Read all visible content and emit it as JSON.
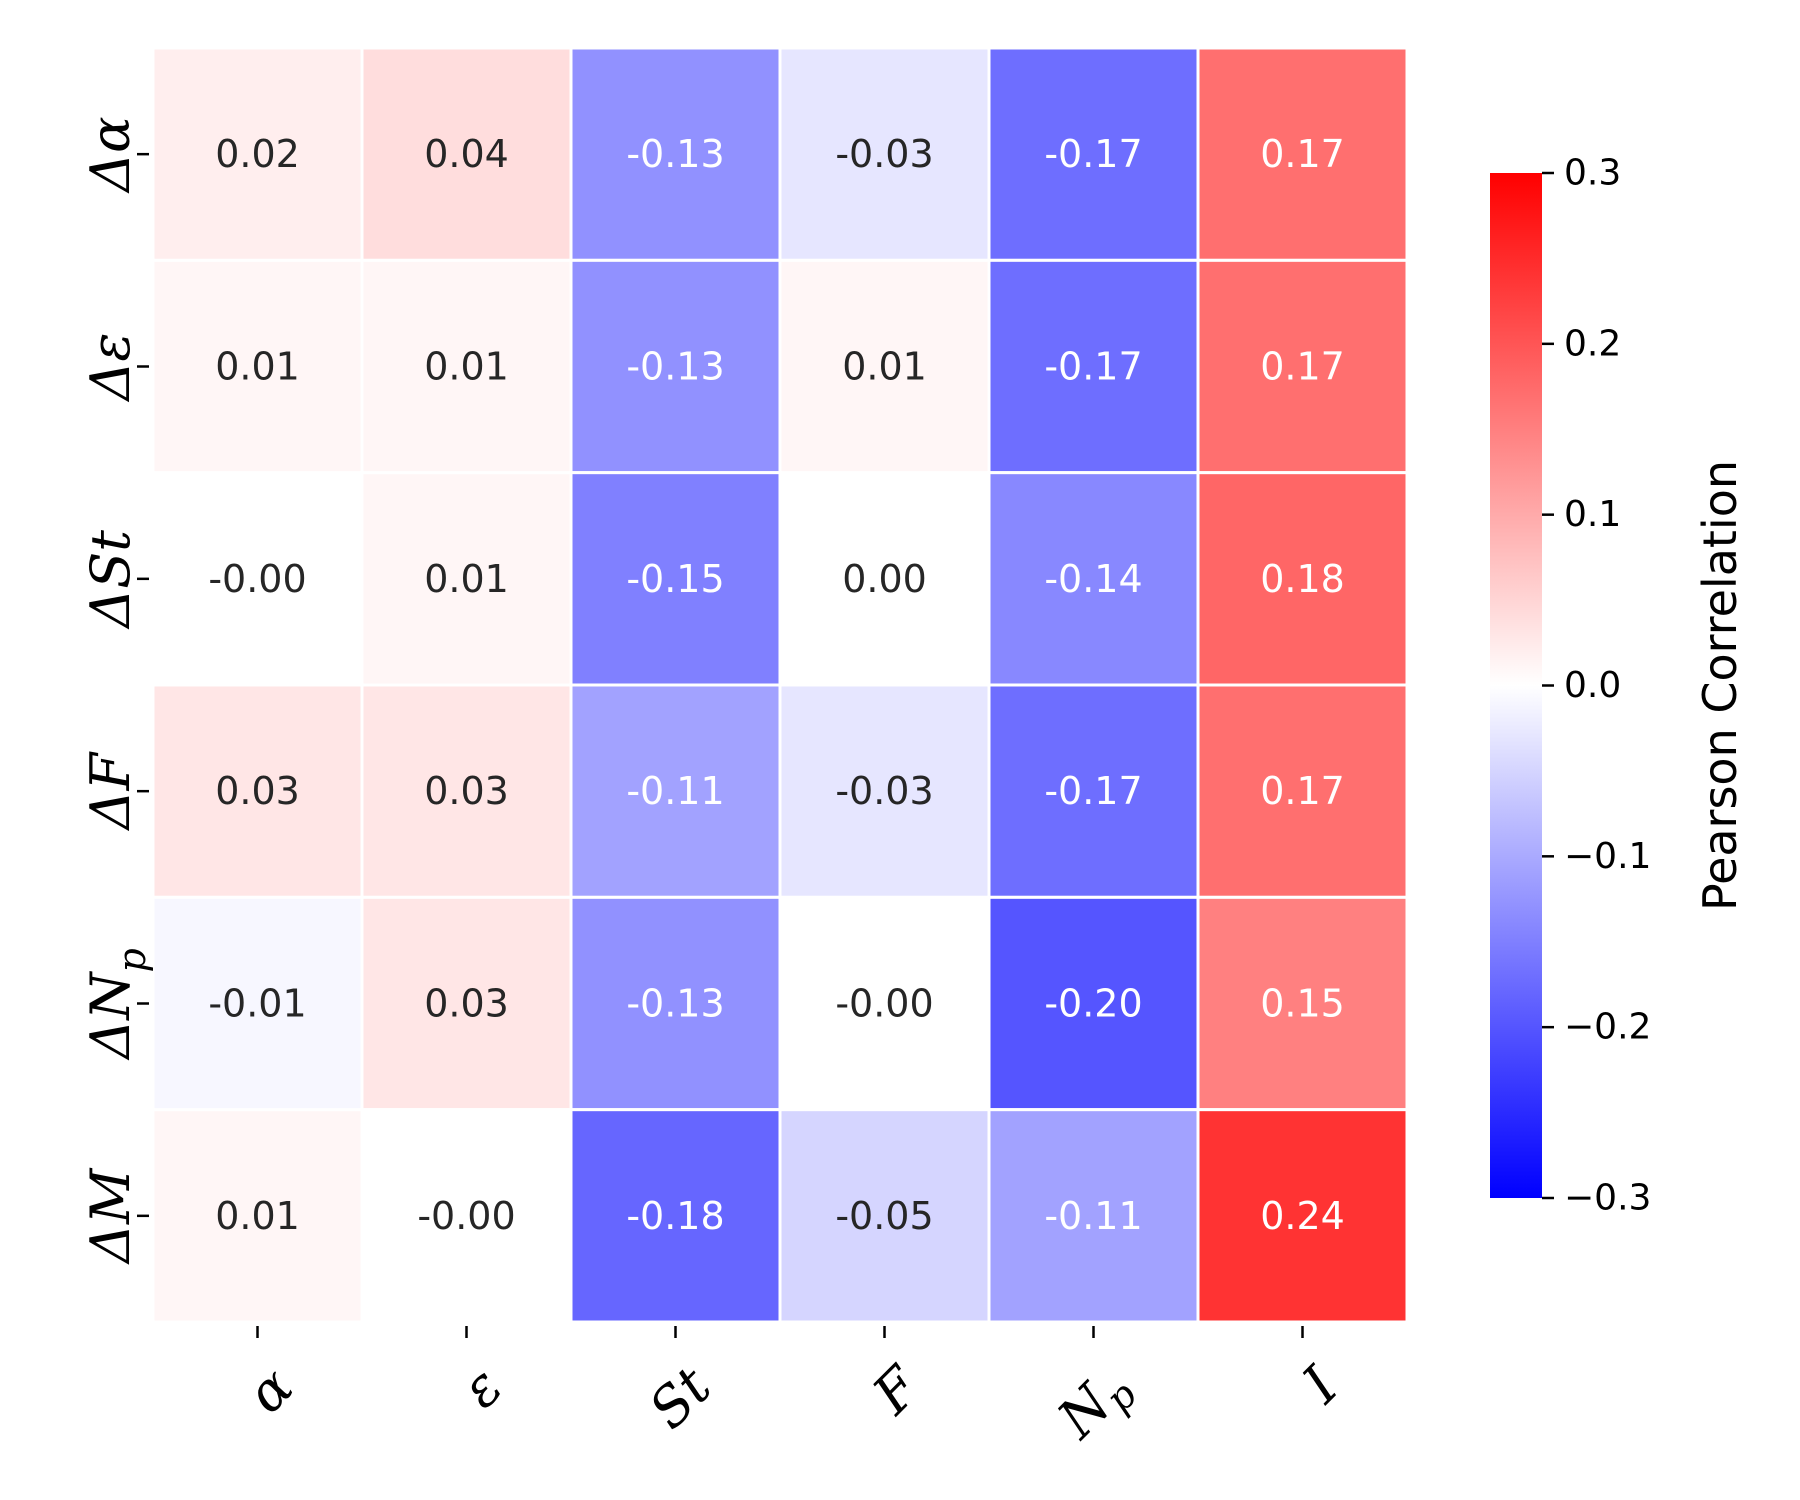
{
  "chart_data": {
    "type": "heatmap",
    "title": "",
    "rows": [
      "Δα",
      "Δε",
      "ΔSt",
      "ΔF",
      "ΔN_p",
      "ΔM"
    ],
    "columns": [
      "α",
      "ε",
      "St",
      "F",
      "N_p",
      "I"
    ],
    "values": [
      [
        0.02,
        0.04,
        -0.13,
        -0.03,
        -0.17,
        0.17
      ],
      [
        0.01,
        0.01,
        -0.13,
        0.01,
        -0.17,
        0.17
      ],
      [
        -0.0,
        0.01,
        -0.15,
        0.0,
        -0.14,
        0.18
      ],
      [
        0.03,
        0.03,
        -0.11,
        -0.03,
        -0.17,
        0.17
      ],
      [
        -0.01,
        0.03,
        -0.13,
        -0.0,
        -0.2,
        0.15
      ],
      [
        0.01,
        -0.0,
        -0.18,
        -0.05,
        -0.11,
        0.24
      ]
    ],
    "labels": [
      [
        "0.02",
        "0.04",
        "-0.13",
        "-0.03",
        "-0.17",
        "0.17"
      ],
      [
        "0.01",
        "0.01",
        "-0.13",
        "0.01",
        "-0.17",
        "0.17"
      ],
      [
        "-0.00",
        "0.01",
        "-0.15",
        "0.00",
        "-0.14",
        "0.18"
      ],
      [
        "0.03",
        "0.03",
        "-0.11",
        "-0.03",
        "-0.17",
        "0.17"
      ],
      [
        "-0.01",
        "0.03",
        "-0.13",
        "-0.00",
        "-0.20",
        "0.15"
      ],
      [
        "0.01",
        "-0.00",
        "-0.18",
        "-0.05",
        "-0.11",
        "0.24"
      ]
    ],
    "colorbar": {
      "label": "Pearson Correlation",
      "range": [
        -0.3,
        0.3
      ],
      "ticks": [
        0.3,
        0.2,
        0.1,
        0.0,
        -0.1,
        -0.2,
        -0.3
      ],
      "tick_labels": [
        "0.3",
        "0.2",
        "0.1",
        "0.0",
        "−0.1",
        "−0.2",
        "−0.3"
      ],
      "colormap": "bwr",
      "low_color": "#0000ff",
      "mid_color": "#ffffff",
      "high_color": "#ff0000"
    },
    "legend": "right"
  }
}
